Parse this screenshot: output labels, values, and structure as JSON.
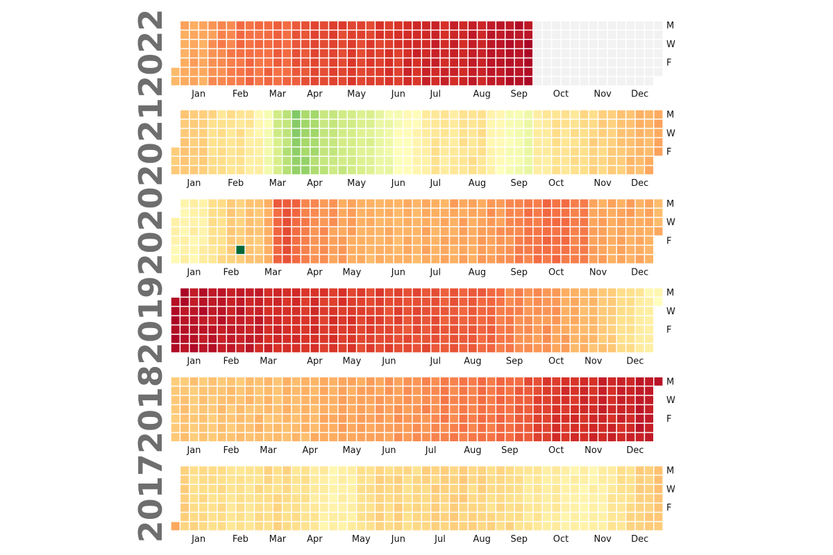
{
  "chart_data": {
    "type": "heatmap",
    "title": "",
    "xlabel": "",
    "ylabel": "",
    "colormap": "RdYlGn_r",
    "color_stops": [
      "#006837",
      "#1a9850",
      "#66bd63",
      "#a6d96a",
      "#d9ef8b",
      "#ffffbf",
      "#fee08b",
      "#fdae61",
      "#f46d43",
      "#d73027",
      "#a50026"
    ],
    "value_scale": "0 = dark green, 1 = dark red",
    "empty_cell_color": "#f2f2f2",
    "month_labels": [
      "Jan",
      "Feb",
      "Mar",
      "Apr",
      "May",
      "Jun",
      "Jul",
      "Aug",
      "Sep",
      "Oct",
      "Nov",
      "Dec"
    ],
    "weekday_labels": [
      "M",
      "W",
      "F"
    ],
    "years": [
      {
        "year": "2022",
        "end_date": "2022-09-25",
        "weekly_levels": [
          0.68,
          0.72,
          0.72,
          0.72,
          0.75,
          0.77,
          0.78,
          0.8,
          0.81,
          0.8,
          0.82,
          0.82,
          0.82,
          0.84,
          0.86,
          0.86,
          0.87,
          0.87,
          0.88,
          0.88,
          0.88,
          0.88,
          0.89,
          0.9,
          0.9,
          0.92,
          0.92,
          0.94,
          0.93,
          0.93,
          0.93,
          0.93,
          0.94,
          0.94,
          0.95,
          0.97,
          0.97,
          0.98,
          0.98
        ],
        "outlier_days": []
      },
      {
        "year": "2021",
        "weekly_levels": [
          0.65,
          0.65,
          0.66,
          0.64,
          0.62,
          0.6,
          0.6,
          0.6,
          0.58,
          0.55,
          0.48,
          0.4,
          0.35,
          0.27,
          0.3,
          0.32,
          0.36,
          0.38,
          0.38,
          0.4,
          0.41,
          0.43,
          0.45,
          0.47,
          0.5,
          0.52,
          0.54,
          0.57,
          0.6,
          0.58,
          0.58,
          0.6,
          0.6,
          0.6,
          0.55,
          0.52,
          0.5,
          0.47,
          0.47,
          0.56,
          0.58,
          0.6,
          0.6,
          0.6,
          0.62,
          0.63,
          0.64,
          0.65,
          0.66,
          0.68,
          0.69,
          0.7,
          0.71
        ],
        "outlier_days": []
      },
      {
        "year": "2020",
        "weekly_levels": [
          0.55,
          0.55,
          0.55,
          0.56,
          0.6,
          0.62,
          0.65,
          0.65,
          0.66,
          0.67,
          0.7,
          0.83,
          0.85,
          0.82,
          0.78,
          0.76,
          0.75,
          0.74,
          0.73,
          0.72,
          0.71,
          0.7,
          0.7,
          0.7,
          0.7,
          0.7,
          0.7,
          0.71,
          0.71,
          0.71,
          0.72,
          0.72,
          0.72,
          0.73,
          0.74,
          0.74,
          0.76,
          0.78,
          0.79,
          0.8,
          0.81,
          0.82,
          0.8,
          0.79,
          0.78,
          0.74,
          0.72,
          0.72,
          0.72,
          0.72,
          0.71,
          0.71,
          0.7
        ],
        "outlier_days": [
          {
            "date": "2020-02-22",
            "level": 0.0
          }
        ]
      },
      {
        "year": "2019",
        "weekly_levels": [
          0.98,
          0.98,
          0.97,
          0.97,
          0.96,
          0.96,
          0.95,
          0.95,
          0.95,
          0.94,
          0.93,
          0.92,
          0.92,
          0.91,
          0.91,
          0.91,
          0.9,
          0.9,
          0.9,
          0.89,
          0.88,
          0.88,
          0.88,
          0.87,
          0.87,
          0.86,
          0.86,
          0.86,
          0.85,
          0.85,
          0.84,
          0.84,
          0.83,
          0.83,
          0.82,
          0.8,
          0.78,
          0.77,
          0.75,
          0.75,
          0.75,
          0.74,
          0.72,
          0.7,
          0.69,
          0.68,
          0.66,
          0.64,
          0.62,
          0.6,
          0.58,
          0.55,
          0.52
        ],
        "outlier_days": []
      },
      {
        "year": "2018",
        "weekly_levels": [
          0.66,
          0.66,
          0.66,
          0.66,
          0.66,
          0.67,
          0.67,
          0.67,
          0.68,
          0.68,
          0.68,
          0.68,
          0.69,
          0.69,
          0.69,
          0.7,
          0.71,
          0.72,
          0.72,
          0.72,
          0.72,
          0.73,
          0.73,
          0.74,
          0.74,
          0.75,
          0.75,
          0.76,
          0.77,
          0.78,
          0.78,
          0.79,
          0.79,
          0.8,
          0.8,
          0.81,
          0.82,
          0.83,
          0.85,
          0.87,
          0.89,
          0.9,
          0.91,
          0.91,
          0.92,
          0.92,
          0.93,
          0.93,
          0.93,
          0.94,
          0.95,
          0.96,
          0.96
        ],
        "outlier_days": []
      },
      {
        "year": "2017",
        "weekly_levels": [
          0.7,
          0.64,
          0.62,
          0.61,
          0.62,
          0.61,
          0.6,
          0.6,
          0.6,
          0.61,
          0.62,
          0.62,
          0.62,
          0.6,
          0.6,
          0.58,
          0.56,
          0.55,
          0.55,
          0.57,
          0.6,
          0.62,
          0.63,
          0.63,
          0.63,
          0.62,
          0.62,
          0.63,
          0.64,
          0.64,
          0.64,
          0.64,
          0.63,
          0.63,
          0.62,
          0.62,
          0.62,
          0.6,
          0.59,
          0.58,
          0.57,
          0.57,
          0.56,
          0.55,
          0.55,
          0.55,
          0.56,
          0.58,
          0.6,
          0.62,
          0.64,
          0.65,
          0.66
        ],
        "outlier_days": []
      }
    ]
  }
}
